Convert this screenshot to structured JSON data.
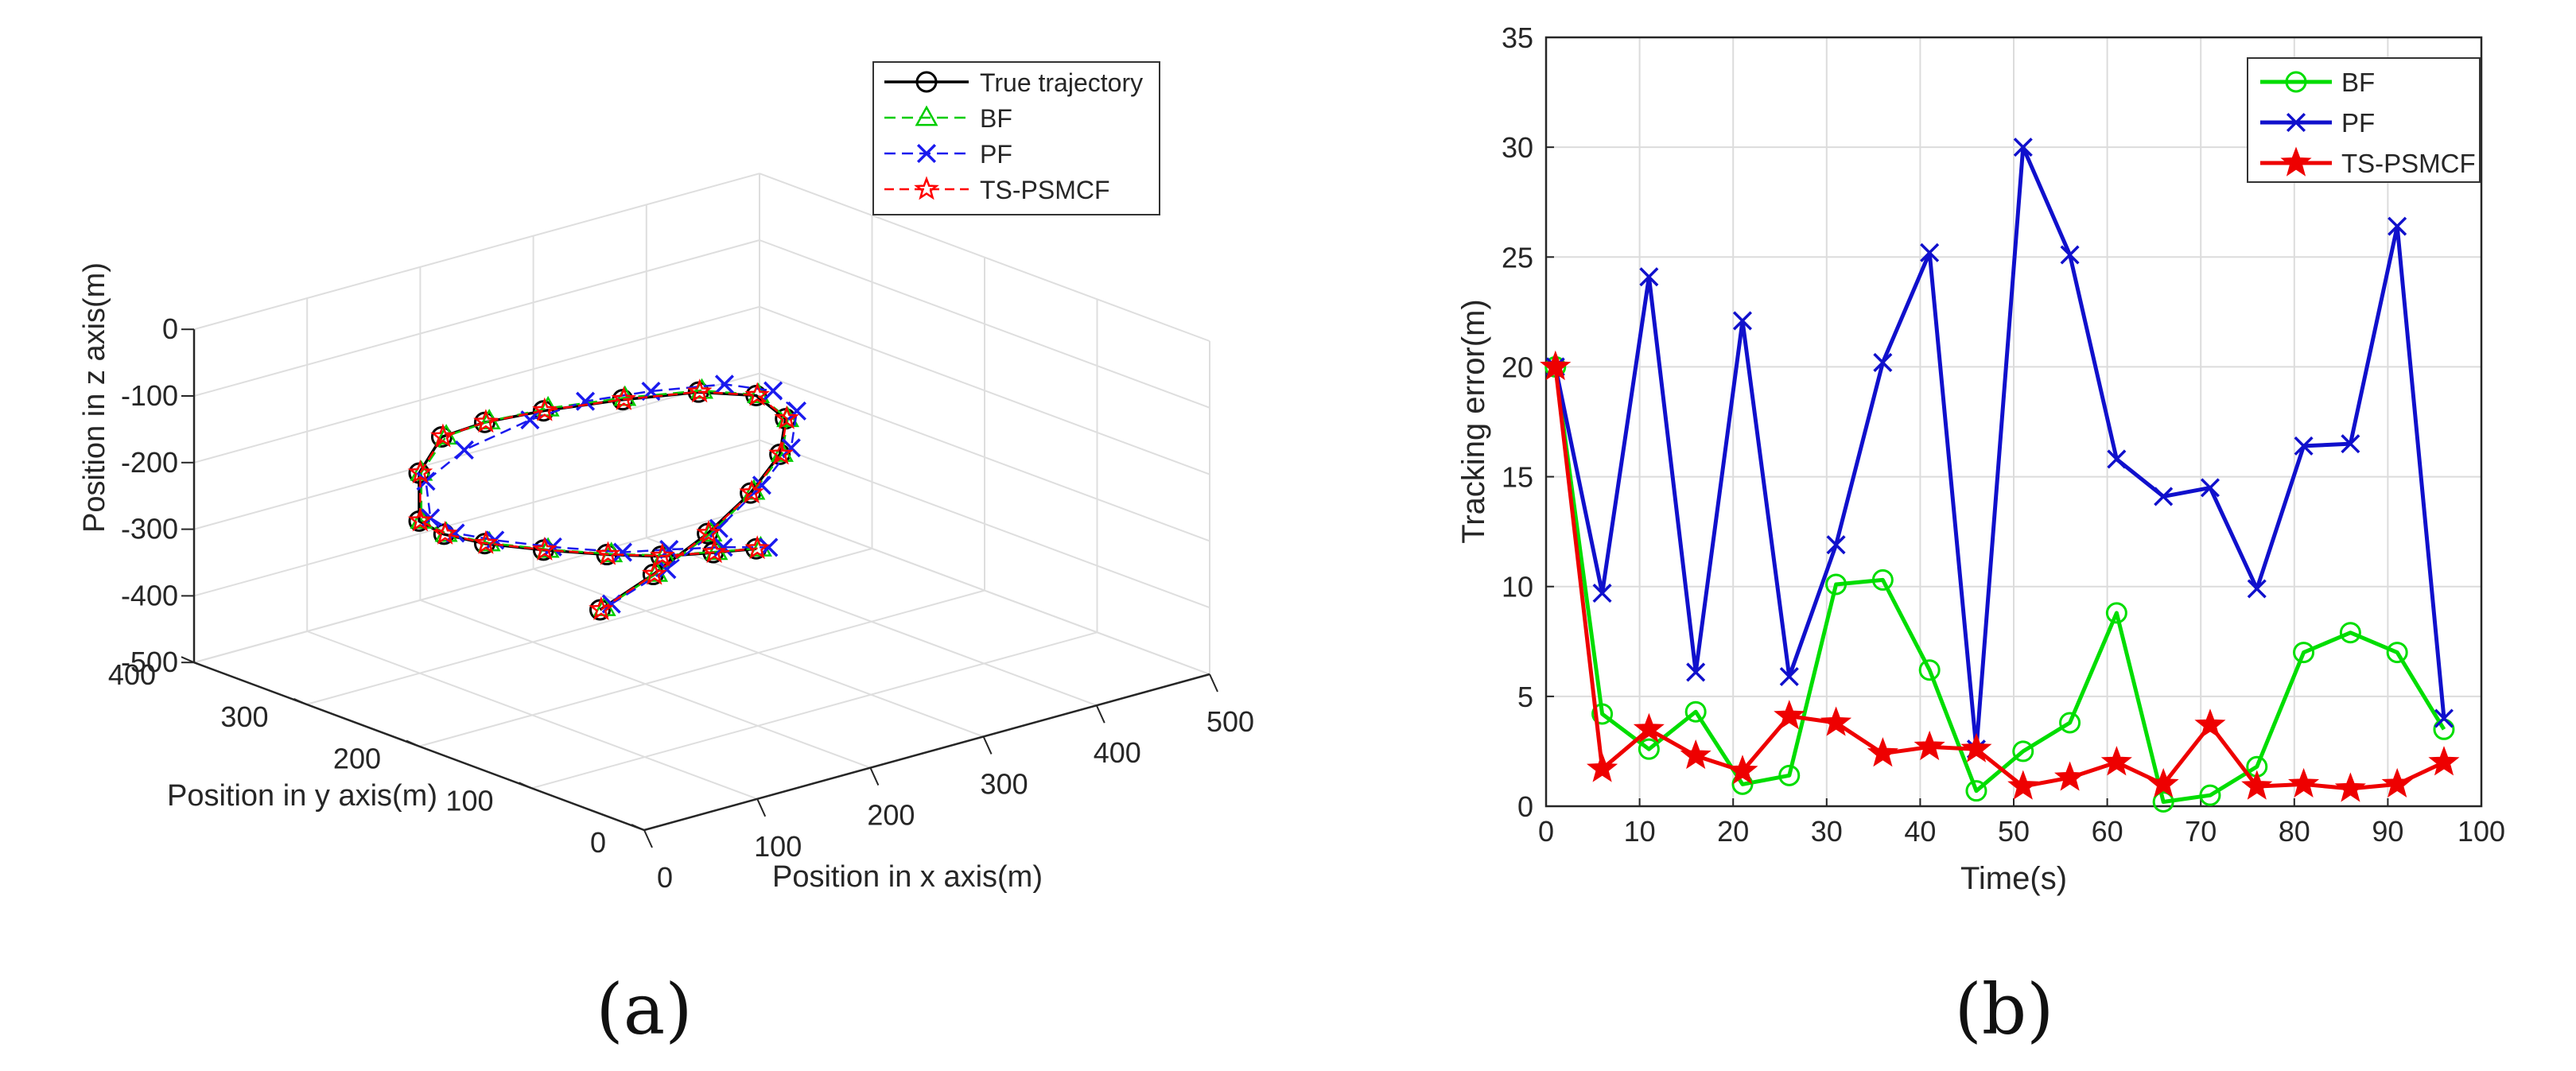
{
  "chart_data": [
    {
      "panel": "a",
      "type": "line3d",
      "caption": "(a)",
      "xlabel": "Position in x axis(m)",
      "ylabel": "Position in y axis(m)",
      "zlabel": "Position in z axis(m)",
      "xlim": [
        0,
        500
      ],
      "ylim": [
        0,
        400
      ],
      "zlim": [
        -500,
        0
      ],
      "x_ticks": [
        "0",
        "100",
        "200",
        "300",
        "400",
        "500"
      ],
      "y_ticks": [
        "0",
        "100",
        "200",
        "300",
        "400"
      ],
      "z_ticks": [
        "0",
        "-100",
        "-200",
        "-300",
        "-400",
        "-500"
      ],
      "legend": [
        "True trajectory",
        "BF",
        "PF",
        "TS-PSMCF"
      ],
      "legend_position": "top-right",
      "grid": true,
      "series": [
        {
          "name": "True trajectory",
          "color": "#000000",
          "marker": "circle",
          "x": [
            160,
            207,
            255,
            293,
            319,
            324,
            298,
            247,
            180,
            110,
            58,
            20,
            0,
            0,
            22,
            58,
            110,
            166,
            214,
            260,
            298
          ],
          "y": [
            200,
            200,
            200,
            200,
            200,
            200,
            200,
            200,
            200,
            200,
            200,
            200,
            200,
            200,
            200,
            200,
            200,
            200,
            200,
            200,
            200
          ],
          "z": [
            -370,
            -339,
            -300,
            -257,
            -211,
            -160,
            -113,
            -84,
            -64,
            -48,
            -41,
            -45,
            -90,
            -162,
            -192,
            -223,
            -257,
            -290,
            -315,
            -331,
            -343
          ]
        },
        {
          "name": "BF",
          "color": "#00cc00",
          "marker": "triangle",
          "x": [
            164,
            210,
            258,
            296,
            321,
            326,
            300,
            250,
            182,
            114,
            62,
            24,
            2,
            2,
            24,
            62,
            114,
            170,
            217,
            263,
            302
          ],
          "y": [
            200,
            200,
            200,
            200,
            200,
            200,
            200,
            200,
            200,
            200,
            200,
            200,
            200,
            200,
            200,
            200,
            200,
            200,
            200,
            200,
            200
          ],
          "z": [
            -369,
            -339,
            -301,
            -256,
            -211,
            -161,
            -113,
            -83,
            -62,
            -46,
            -41,
            -46,
            -90,
            -162,
            -192,
            -224,
            -258,
            -291,
            -315,
            -331,
            -344
          ]
        },
        {
          "name": "PF",
          "color": "#1a1aee",
          "marker": "x",
          "x": [
            170,
            219,
            265,
            303,
            329,
            334,
            313,
            270,
            205,
            147,
            98,
            40,
            6,
            10,
            32,
            67,
            118,
            180,
            221,
            269,
            309
          ],
          "y": [
            200,
            200,
            200,
            200,
            200,
            200,
            200,
            200,
            200,
            200,
            200,
            200,
            200,
            200,
            200,
            200,
            200,
            200,
            200,
            200,
            200
          ],
          "z": [
            -366,
            -337,
            -297,
            -250,
            -206,
            -153,
            -113,
            -83,
            -63,
            -51,
            -56,
            -74,
            -105,
            -162,
            -195,
            -222,
            -256,
            -293,
            -308,
            -327,
            -346
          ]
        },
        {
          "name": "TS-PSMCF",
          "color": "#ff0000",
          "marker": "star",
          "x": [
            161,
            208,
            256,
            294,
            320,
            325,
            299,
            248,
            181,
            111,
            59,
            21,
            1,
            1,
            23,
            59,
            111,
            167,
            215,
            261,
            299
          ],
          "y": [
            200,
            200,
            200,
            200,
            200,
            200,
            200,
            200,
            200,
            200,
            200,
            200,
            200,
            200,
            200,
            200,
            200,
            200,
            200,
            200,
            200
          ],
          "z": [
            -370,
            -339,
            -300,
            -257,
            -211,
            -160,
            -113,
            -84,
            -64,
            -48,
            -41,
            -45,
            -90,
            -162,
            -192,
            -223,
            -257,
            -290,
            -315,
            -331,
            -343
          ]
        }
      ]
    },
    {
      "panel": "b",
      "type": "line",
      "caption": "(b)",
      "xlabel": "Time(s)",
      "ylabel": "Tracking error(m)",
      "xlim": [
        0,
        100
      ],
      "ylim": [
        0,
        35
      ],
      "x_ticks": [
        0,
        10,
        20,
        30,
        40,
        50,
        60,
        70,
        80,
        90,
        100
      ],
      "y_ticks": [
        0,
        5,
        10,
        15,
        20,
        25,
        30,
        35
      ],
      "grid": true,
      "legend": [
        "BF",
        "PF",
        "TS-PSMCF"
      ],
      "legend_position": "top-right",
      "x": [
        1,
        6,
        11,
        16,
        21,
        26,
        31,
        36,
        41,
        46,
        51,
        56,
        61,
        66,
        71,
        76,
        81,
        86,
        91,
        96
      ],
      "series": [
        {
          "name": "BF",
          "color": "#00dd00",
          "marker": "circle",
          "values": [
            20,
            4.2,
            2.6,
            4.3,
            1.0,
            1.4,
            10.1,
            10.3,
            6.2,
            0.7,
            2.5,
            3.8,
            8.8,
            0.2,
            0.5,
            1.8,
            7.0,
            7.9,
            7.0,
            3.5
          ]
        },
        {
          "name": "PF",
          "color": "#1010cc",
          "marker": "x",
          "values": [
            20,
            9.7,
            24.1,
            6.1,
            22.1,
            5.9,
            11.9,
            20.2,
            25.2,
            2.6,
            30.0,
            25.1,
            15.8,
            14.1,
            14.5,
            9.9,
            16.4,
            16.5,
            26.4,
            4.0
          ]
        },
        {
          "name": "TS-PSMCF",
          "color": "#ee0000",
          "marker": "star",
          "values": [
            20,
            1.7,
            3.5,
            2.3,
            1.6,
            4.1,
            3.8,
            2.4,
            2.7,
            2.6,
            0.9,
            1.3,
            2.0,
            1.0,
            3.7,
            0.9,
            1.0,
            0.8,
            1.0,
            2.0
          ]
        }
      ]
    }
  ]
}
